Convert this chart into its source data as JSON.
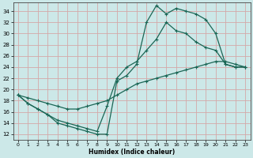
{
  "xlabel": "Humidex (Indice chaleur)",
  "ylabel": "",
  "xlim": [
    -0.5,
    23.5
  ],
  "ylim": [
    11,
    35.5
  ],
  "yticks": [
    12,
    14,
    16,
    18,
    20,
    22,
    24,
    26,
    28,
    30,
    32,
    34
  ],
  "xticks": [
    0,
    1,
    2,
    3,
    4,
    5,
    6,
    7,
    8,
    9,
    10,
    11,
    12,
    13,
    14,
    15,
    16,
    17,
    18,
    19,
    20,
    21,
    22,
    23
  ],
  "bg_color": "#cce8e8",
  "grid_color": "#d4a8a8",
  "line_color": "#1a6655",
  "line1_x": [
    0,
    1,
    2,
    3,
    4,
    5,
    6,
    7,
    8,
    9,
    10,
    11,
    12,
    13,
    14,
    15,
    16,
    17,
    18,
    19,
    20,
    21,
    22,
    23
  ],
  "line1_y": [
    19,
    17.5,
    16.5,
    15.5,
    14,
    13.5,
    13,
    12.5,
    12,
    12,
    21.5,
    22.5,
    24.5,
    32,
    35,
    33.5,
    34.5,
    34,
    33.5,
    32.5,
    30,
    24.5,
    24,
    24
  ],
  "line2_x": [
    0,
    1,
    2,
    3,
    4,
    5,
    6,
    7,
    8,
    9,
    10,
    11,
    12,
    13,
    14,
    15,
    16,
    17,
    18,
    19,
    20,
    21,
    22,
    23
  ],
  "line2_y": [
    19,
    17.5,
    16.5,
    15.5,
    14.5,
    14,
    13.5,
    13,
    12.5,
    17,
    22,
    24,
    25,
    27,
    29,
    32,
    30.5,
    30,
    28.5,
    27.5,
    27,
    24.5,
    24,
    24
  ],
  "line3_x": [
    0,
    1,
    2,
    3,
    4,
    5,
    6,
    7,
    8,
    9,
    10,
    11,
    12,
    13,
    14,
    15,
    16,
    17,
    18,
    19,
    20,
    21,
    22,
    23
  ],
  "line3_y": [
    19,
    18.5,
    18,
    17.5,
    17,
    16.5,
    16.5,
    17,
    17.5,
    18,
    19,
    20,
    21,
    21.5,
    22,
    22.5,
    23,
    23.5,
    24,
    24.5,
    25,
    25,
    24.5,
    24
  ]
}
